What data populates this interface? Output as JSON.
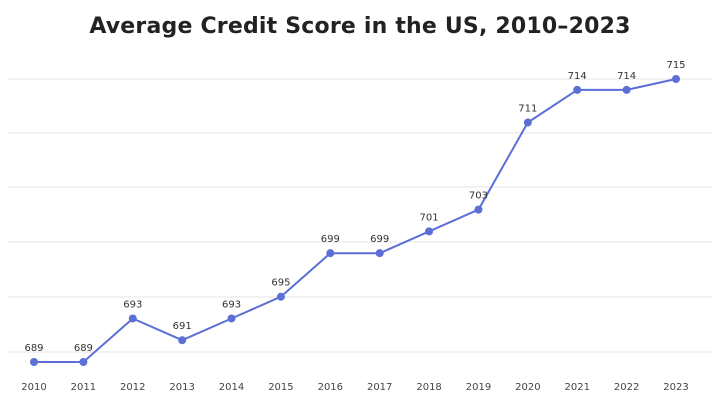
{
  "chart_data": {
    "type": "line",
    "title": "Average Credit Score in the US, 2010–2023",
    "xlabel": "",
    "ylabel": "",
    "categories": [
      "2010",
      "2011",
      "2012",
      "2013",
      "2014",
      "2015",
      "2016",
      "2017",
      "2018",
      "2019",
      "2020",
      "2021",
      "2022",
      "2023"
    ],
    "series": [
      {
        "values": [
          689,
          689,
          693,
          691,
          693,
          695,
          699,
          699,
          701,
          703,
          711,
          714,
          714,
          715
        ]
      }
    ],
    "data_labels": [
      "689",
      "689",
      "693",
      "691",
      "693",
      "695",
      "699",
      "699",
      "701",
      "703",
      "711",
      "714",
      "714",
      "715"
    ],
    "ylim": [
      688,
      716
    ],
    "grid": true,
    "legend": "none",
    "colors": {
      "line": "#5b6fd6",
      "marker": "#5b6fd6",
      "grid": "#e6e6e6"
    }
  }
}
